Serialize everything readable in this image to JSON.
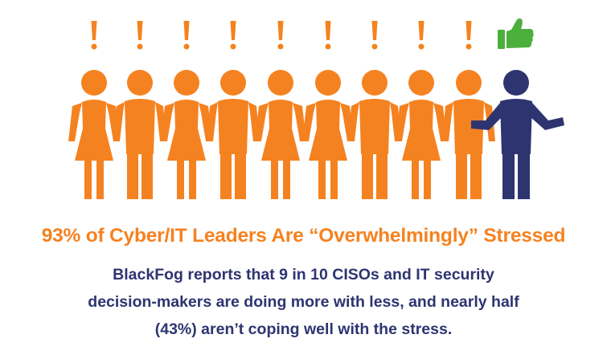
{
  "headline": "93% of Cyber/IT Leaders Are “Overwhelmingly” Stressed",
  "body_lines": [
    "BlackFog reports that 9 in 10 CISOs and IT security",
    "decision-makers are doing more with less, and nearly half",
    "(43%) aren’t coping well with the stress."
  ],
  "colors": {
    "stressed": "#f58220",
    "coping": "#2e3470",
    "thumb": "#4caf3d",
    "headline": "#f58220",
    "body": "#2e3470"
  },
  "figures": [
    {
      "kind": "female",
      "status": "stressed",
      "mark": "exclamation-icon"
    },
    {
      "kind": "male",
      "status": "stressed",
      "mark": "exclamation-icon"
    },
    {
      "kind": "female",
      "status": "stressed",
      "mark": "exclamation-icon"
    },
    {
      "kind": "male",
      "status": "stressed",
      "mark": "exclamation-icon"
    },
    {
      "kind": "female",
      "status": "stressed",
      "mark": "exclamation-icon"
    },
    {
      "kind": "female",
      "status": "stressed",
      "mark": "exclamation-icon"
    },
    {
      "kind": "male",
      "status": "stressed",
      "mark": "exclamation-icon"
    },
    {
      "kind": "female",
      "status": "stressed",
      "mark": "exclamation-icon"
    },
    {
      "kind": "male",
      "status": "stressed",
      "mark": "exclamation-icon"
    },
    {
      "kind": "male-waving",
      "status": "coping",
      "mark": "thumbs-up-icon"
    }
  ]
}
